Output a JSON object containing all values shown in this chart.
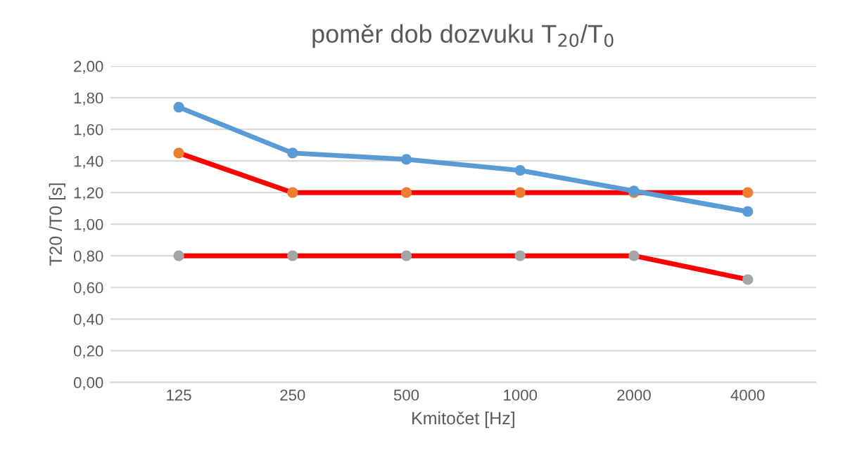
{
  "chart_data": {
    "type": "line",
    "title": "poměr dob dozvuku T$_{20}$/T$_{0}$",
    "xlabel": "Kmitočet [Hz]",
    "ylabel": "T20 /T0 [s]",
    "categories": [
      "125",
      "250",
      "500",
      "1000",
      "2000",
      "4000"
    ],
    "series": [
      {
        "color": "#5b9bd5",
        "values": [
          1.74,
          1.45,
          1.41,
          1.34,
          1.21,
          1.08
        ]
      },
      {
        "color": "#ff0000",
        "colors": [
          "#ed7d31",
          "#ed7d31",
          "#ed7d31",
          "#ed7d31",
          "#ed7d31",
          "#ed7d31"
        ],
        "values": [
          1.45,
          1.2,
          1.2,
          1.2,
          1.2,
          1.2
        ]
      },
      {
        "color": "#ff0000",
        "colors": [
          "#a5a5a5",
          "#a5a5a5",
          "#a5a5a5",
          "#a5a5a5",
          "#a5a5a5",
          "#a5a5a5"
        ],
        "values": [
          0.8,
          0.8,
          0.8,
          0.8,
          0.8,
          0.65
        ]
      }
    ],
    "ylim": [
      0,
      2
    ],
    "yticks": [
      {
        "value": 0,
        "label": "0,00"
      },
      {
        "value": 0.2,
        "label": "0,20"
      },
      {
        "value": 0.4,
        "label": "0,40"
      },
      {
        "value": 0.6,
        "label": "0,60"
      },
      {
        "value": 0.8,
        "label": "0,80"
      },
      {
        "value": 1,
        "label": "1,00"
      },
      {
        "value": 1.2,
        "label": "1,20"
      },
      {
        "value": 1.4,
        "label": "1,40"
      },
      {
        "value": 1.6,
        "label": "1,60"
      },
      {
        "value": 1.8,
        "label": "1,80"
      },
      {
        "value": 2,
        "label": "2,00"
      }
    ],
    "grid": "y",
    "marker": "circle",
    "line_style": "solid"
  }
}
